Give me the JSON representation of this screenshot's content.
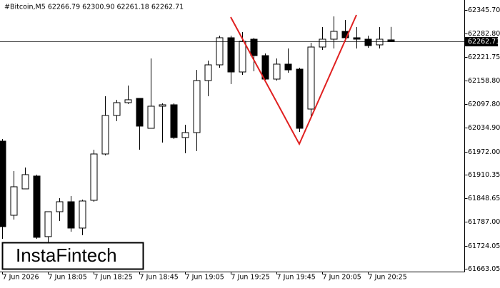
{
  "chart_data": {
    "type": "candlestick",
    "header": "#Bitcoin,M5  62266.79 62300.90 62261.18 62262.71",
    "watermark": "InstaFintech",
    "categories": [
      "7 Jun 2026",
      null,
      null,
      null,
      "7 Jun 18:05",
      null,
      null,
      null,
      "7 Jun 18:25",
      null,
      null,
      null,
      "7 Jun 18:45",
      null,
      null,
      null,
      "7 Jun 19:05",
      null,
      null,
      null,
      "7 Jun 19:25",
      null,
      null,
      null,
      "7 Jun 19:45",
      null,
      null,
      null,
      "7 Jun 20:05",
      null,
      null,
      null,
      "7 Jun 20:25",
      null,
      null
    ],
    "open": [
      61999.7,
      61804.1,
      61873.7,
      61907.6,
      61747.8,
      61813.5,
      61839.8,
      61770.3,
      61843.6,
      61965.8,
      62067.4,
      62101.2,
      62112.5,
      62033.5,
      62091.8,
      62095.6,
      62009.1,
      62022.2,
      62159.5,
      62200.9,
      62272.4,
      62182.1,
      62268.6,
      62225.3,
      62163.3,
      62202.8,
      62189.6,
      62084.3,
      62247.9,
      62268.6,
      62289.3,
      62272.4,
      62268.6,
      62253.6,
      62266.79
    ],
    "high": [
      62005.3,
      61920.7,
      61930.1,
      61911.3,
      61813.5,
      61849.2,
      61854.9,
      61845.5,
      61977.1,
      62118.2,
      62108.8,
      62146.4,
      62112.5,
      62217.8,
      62099.3,
      62099.3,
      62042.9,
      62187.7,
      62212.2,
      62278.0,
      62278.0,
      62287.4,
      62272.4,
      62231.0,
      62217.8,
      62244.1,
      62193.4,
      62259.2,
      62300.6,
      62328.8,
      62319.4,
      62300.6,
      62278.0,
      62300.6,
      62300.9
    ],
    "low": [
      61742.1,
      61792.8,
      61873.7,
      61742.1,
      61732.7,
      61789.1,
      61760.9,
      61751.6,
      61839.8,
      61962.1,
      62052.3,
      62097.5,
      61977.1,
      62033.5,
      61995.9,
      62005.3,
      61967.7,
      61973.4,
      62118.2,
      62193.4,
      62150.1,
      62174.6,
      62184.0,
      62161.4,
      62159.5,
      62180.2,
      62024.1,
      62061.7,
      62240.4,
      62244.1,
      62263.0,
      62244.1,
      62246.0,
      62244.1,
      62261.18
    ],
    "close": [
      61774.1,
      61879.3,
      61911.3,
      61745.9,
      61813.5,
      61839.8,
      61770.3,
      61841.7,
      61965.8,
      62067.4,
      62101.2,
      62108.8,
      62039.2,
      62091.8,
      62095.6,
      62009.1,
      62022.2,
      62159.5,
      62200.9,
      62272.4,
      62182.1,
      62263.0,
      62225.3,
      62163.3,
      62202.8,
      62187.7,
      62033.5,
      62247.9,
      62268.6,
      62289.3,
      62272.4,
      62268.6,
      62251.7,
      62268.6,
      62262.71
    ],
    "last_price": 62262.71,
    "ylim": [
      61653.6,
      62372.0
    ],
    "yticks": [
      {
        "value": 62345.7,
        "label": "62345.70"
      },
      {
        "value": 62282.8,
        "label": "62282.80"
      },
      62221.75,
      {
        "value": 62158.8,
        "label": "62158.80"
      },
      {
        "value": 62097.8,
        "label": "62097.80"
      },
      {
        "value": 62034.9,
        "label": "62034.90"
      },
      {
        "value": 61972,
        "label": "61972.00"
      },
      61910.35,
      61848.65,
      {
        "value": 61787,
        "label": "61787.00"
      },
      61724.05,
      61663.05
    ]
  }
}
